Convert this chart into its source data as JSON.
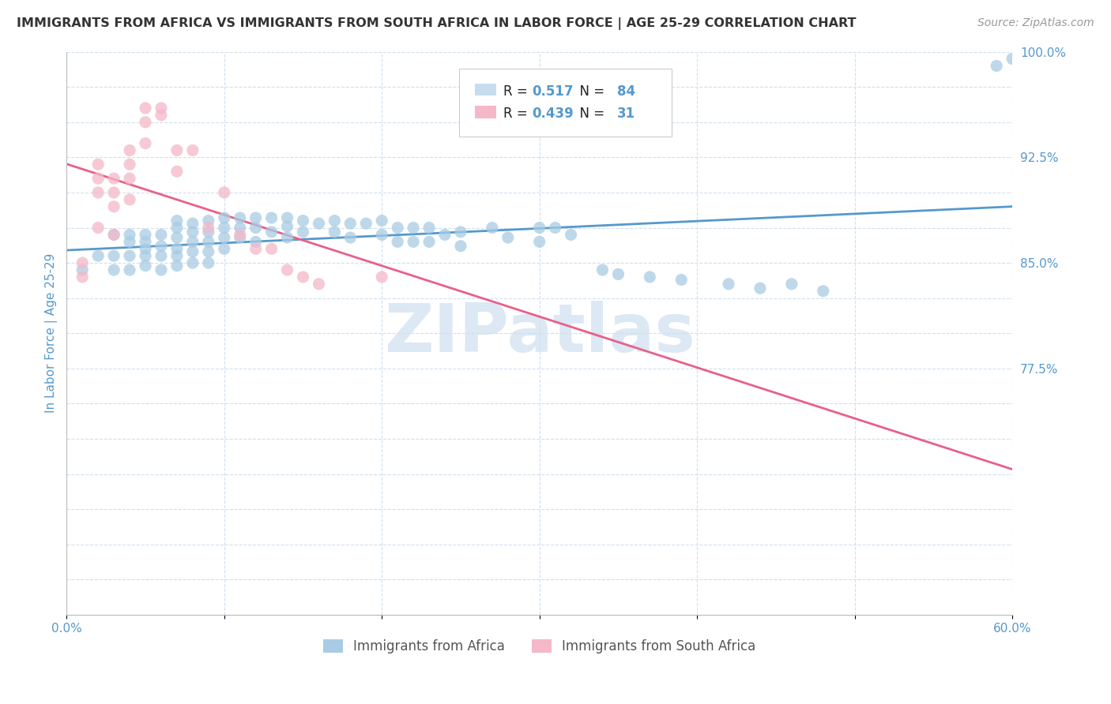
{
  "title": "IMMIGRANTS FROM AFRICA VS IMMIGRANTS FROM SOUTH AFRICA IN LABOR FORCE | AGE 25-29 CORRELATION CHART",
  "source": "Source: ZipAtlas.com",
  "ylabel": "In Labor Force | Age 25-29",
  "xmin": 0.0,
  "xmax": 0.6,
  "ymin": 0.6,
  "ymax": 1.0,
  "ytick_positions": [
    0.6,
    0.625,
    0.65,
    0.675,
    0.7,
    0.725,
    0.75,
    0.775,
    0.8,
    0.825,
    0.85,
    0.875,
    0.9,
    0.925,
    0.95,
    0.975,
    1.0
  ],
  "ytick_labels": [
    "",
    "",
    "",
    "",
    "",
    "",
    "",
    "77.5%",
    "",
    "",
    "85.0%",
    "",
    "",
    "92.5%",
    "",
    "",
    "100.0%"
  ],
  "xtick_positions": [
    0.0,
    0.1,
    0.2,
    0.3,
    0.4,
    0.5,
    0.6
  ],
  "xtick_labels": [
    "0.0%",
    "",
    "",
    "",
    "",
    "",
    "60.0%"
  ],
  "blue_R": 0.517,
  "blue_N": 84,
  "pink_R": 0.439,
  "pink_N": 31,
  "blue_color": "#a8cce4",
  "pink_color": "#f4b8c8",
  "line_blue": "#5599cc",
  "line_pink": "#e8608a",
  "grid_color": "#d0dff0",
  "axis_label_color": "#5599cc",
  "title_color": "#333333",
  "watermark_color": "#dce8f4",
  "legend_box_color": "#c5ddef",
  "blue_x": [
    0.01,
    0.02,
    0.03,
    0.03,
    0.03,
    0.04,
    0.04,
    0.04,
    0.04,
    0.05,
    0.05,
    0.05,
    0.05,
    0.05,
    0.06,
    0.06,
    0.06,
    0.06,
    0.07,
    0.07,
    0.07,
    0.07,
    0.07,
    0.07,
    0.08,
    0.08,
    0.08,
    0.08,
    0.08,
    0.09,
    0.09,
    0.09,
    0.09,
    0.09,
    0.1,
    0.1,
    0.1,
    0.1,
    0.11,
    0.11,
    0.11,
    0.12,
    0.12,
    0.12,
    0.13,
    0.13,
    0.14,
    0.14,
    0.14,
    0.15,
    0.15,
    0.16,
    0.17,
    0.17,
    0.18,
    0.18,
    0.19,
    0.2,
    0.2,
    0.21,
    0.21,
    0.22,
    0.22,
    0.23,
    0.23,
    0.24,
    0.25,
    0.25,
    0.27,
    0.28,
    0.3,
    0.3,
    0.31,
    0.32,
    0.34,
    0.35,
    0.37,
    0.39,
    0.42,
    0.44,
    0.46,
    0.48,
    0.59,
    0.6
  ],
  "blue_y": [
    0.845,
    0.855,
    0.87,
    0.855,
    0.845,
    0.87,
    0.865,
    0.855,
    0.845,
    0.87,
    0.865,
    0.86,
    0.855,
    0.848,
    0.87,
    0.862,
    0.855,
    0.845,
    0.88,
    0.875,
    0.868,
    0.86,
    0.855,
    0.848,
    0.878,
    0.872,
    0.865,
    0.858,
    0.85,
    0.88,
    0.872,
    0.865,
    0.858,
    0.85,
    0.882,
    0.875,
    0.868,
    0.86,
    0.882,
    0.875,
    0.868,
    0.882,
    0.875,
    0.865,
    0.882,
    0.872,
    0.882,
    0.876,
    0.868,
    0.88,
    0.872,
    0.878,
    0.88,
    0.872,
    0.878,
    0.868,
    0.878,
    0.88,
    0.87,
    0.875,
    0.865,
    0.875,
    0.865,
    0.875,
    0.865,
    0.87,
    0.872,
    0.862,
    0.875,
    0.868,
    0.875,
    0.865,
    0.875,
    0.87,
    0.845,
    0.842,
    0.84,
    0.838,
    0.835,
    0.832,
    0.835,
    0.83,
    0.99,
    0.995
  ],
  "pink_x": [
    0.01,
    0.01,
    0.02,
    0.02,
    0.02,
    0.02,
    0.03,
    0.03,
    0.03,
    0.03,
    0.04,
    0.04,
    0.04,
    0.04,
    0.05,
    0.05,
    0.05,
    0.06,
    0.06,
    0.07,
    0.07,
    0.08,
    0.09,
    0.1,
    0.11,
    0.12,
    0.13,
    0.14,
    0.15,
    0.16,
    0.2
  ],
  "pink_y": [
    0.85,
    0.84,
    0.92,
    0.91,
    0.9,
    0.875,
    0.91,
    0.9,
    0.89,
    0.87,
    0.93,
    0.92,
    0.91,
    0.895,
    0.96,
    0.95,
    0.935,
    0.96,
    0.955,
    0.93,
    0.915,
    0.93,
    0.875,
    0.9,
    0.87,
    0.86,
    0.86,
    0.845,
    0.84,
    0.835,
    0.84
  ]
}
